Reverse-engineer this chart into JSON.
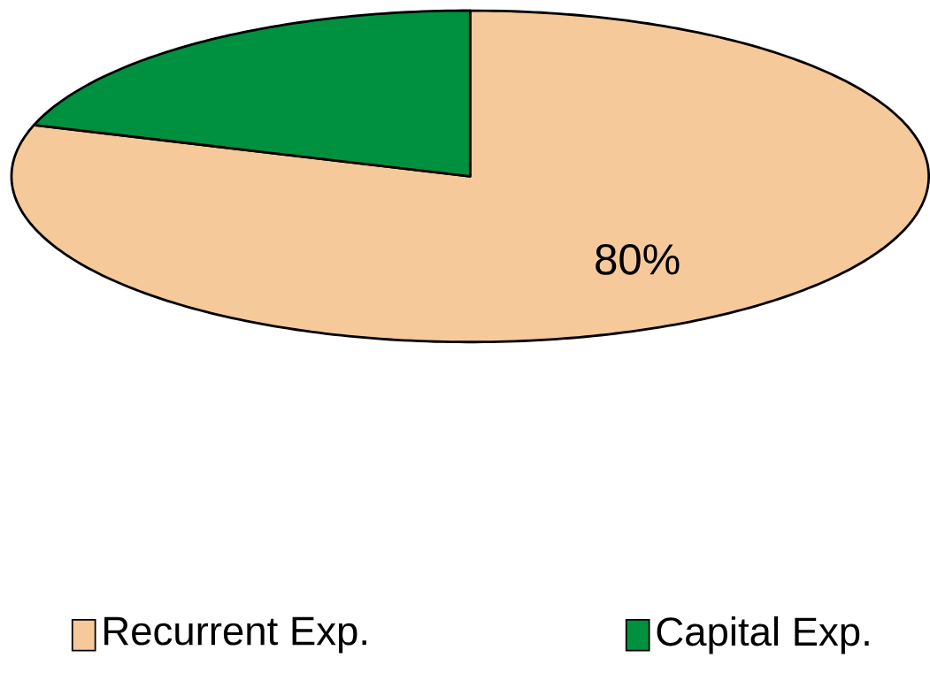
{
  "chart_data": {
    "type": "pie",
    "categories": [
      "Recurrent Exp.",
      "Capital Exp."
    ],
    "values": [
      80,
      20
    ],
    "colors": [
      "#f5c99a",
      "#009140"
    ],
    "value_labels": [
      "80%",
      null
    ],
    "legend": "bottom"
  }
}
